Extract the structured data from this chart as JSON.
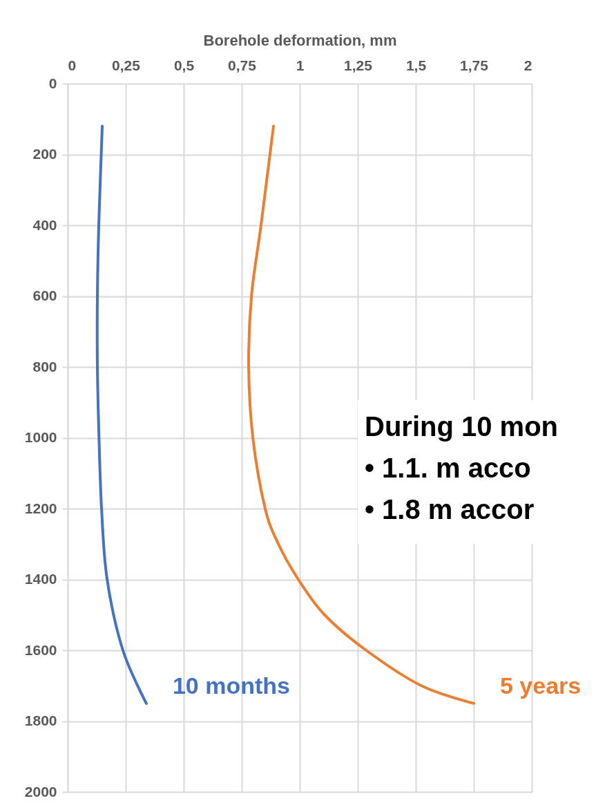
{
  "chart_data": {
    "type": "line",
    "xlabel": "Borehole deformation, mm",
    "xlim": [
      0,
      2
    ],
    "xticks": [
      0,
      {
        "value": 0.25,
        "label": "0,25"
      },
      {
        "value": 0.5,
        "label": "0,5"
      },
      {
        "value": 0.75,
        "label": "0,75"
      },
      1,
      {
        "value": 1.25,
        "label": "1,25"
      },
      {
        "value": 1.5,
        "label": "1,5"
      },
      {
        "value": 1.75,
        "label": "1,75"
      },
      2
    ],
    "ylim": [
      2000,
      0
    ],
    "yticks": [
      0,
      200,
      400,
      600,
      800,
      1000,
      1200,
      1400,
      1600,
      1800,
      2000
    ],
    "grid": true,
    "line_style": "solid",
    "marker": "none",
    "annotations": [
      "During 10 mon",
      "•   1.1. m acco",
      "•   1.8 m accor"
    ],
    "series": [
      {
        "name": "10 months",
        "color": "#4472c4",
        "x": [
          0.149,
          0.134,
          0.128,
          0.128,
          0.135,
          0.146,
          0.17,
          0.238,
          0.339
        ],
        "values": [
          120,
          400,
          600,
          800,
          1000,
          1200,
          1400,
          1600,
          1750
        ]
      },
      {
        "name": "5 years",
        "color": "#ed7d31",
        "x": [
          0.887,
          0.833,
          0.792,
          0.78,
          0.798,
          0.851,
          0.908,
          0.994,
          1.107,
          1.286,
          1.524,
          1.75
        ],
        "values": [
          120,
          400,
          600,
          800,
          1000,
          1200,
          1300,
          1400,
          1500,
          1600,
          1700,
          1750
        ]
      }
    ]
  }
}
